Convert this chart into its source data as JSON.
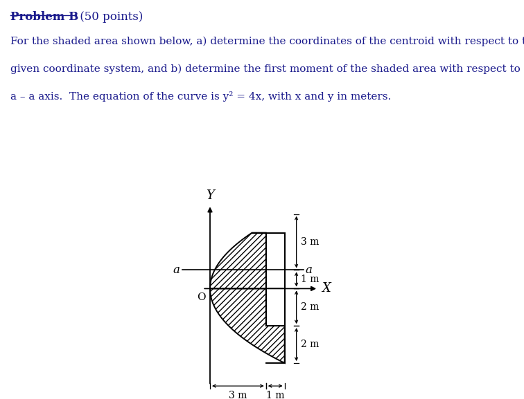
{
  "fig_width": 7.56,
  "fig_height": 5.77,
  "dpi": 100,
  "bg_color": "#ffffff",
  "text_color": "#1a1a8c",
  "hatch_pattern": "////",
  "body_lines": [
    "For the shaded area shown below, a) determine the coordinates of the centroid with respect to the",
    "given coordinate system, and b) determine the first moment of the shaded area with respect to the",
    "a – a axis.  The equation of the curve is y² = 4x, with x and y in meters."
  ],
  "lw": 1.4,
  "s": 0.7,
  "ox": 3.05,
  "oy": 3.5
}
